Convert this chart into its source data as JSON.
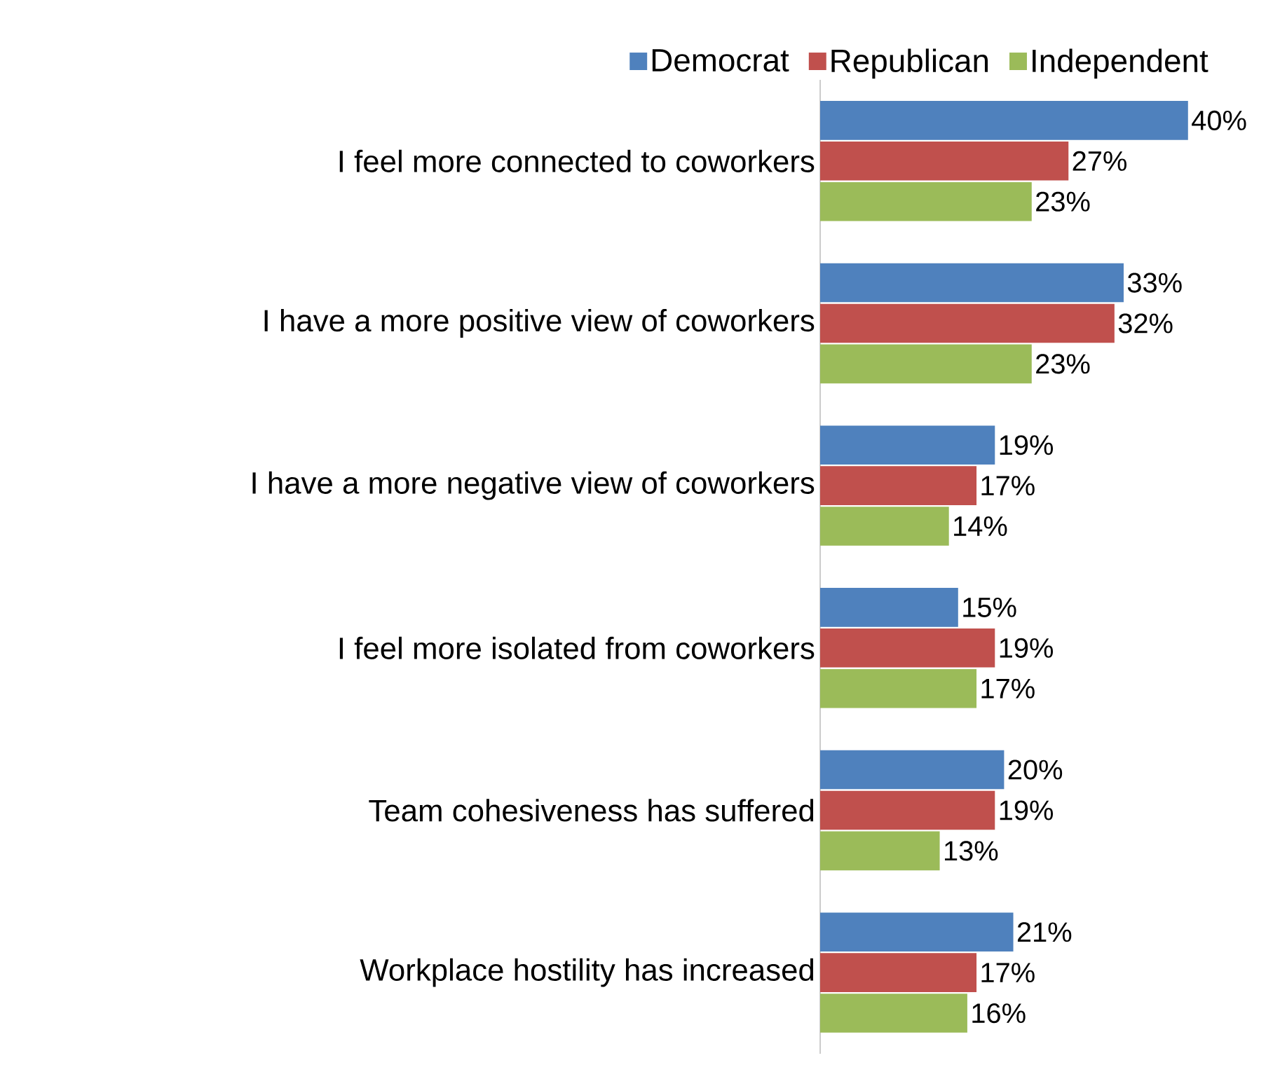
{
  "chart_data": {
    "type": "bar",
    "orientation": "horizontal",
    "legend": "top",
    "categories": [
      "I feel more connected to coworkers",
      "I have a more positive view of coworkers",
      "I have a more negative view of coworkers",
      "I feel more isolated from coworkers",
      "Team cohesiveness has suffered",
      "Workplace hostility has increased"
    ],
    "series": [
      {
        "name": "Democrat",
        "color": "#4f81bd",
        "values": [
          40,
          33,
          19,
          15,
          20,
          21
        ],
        "value_labels": [
          "40%",
          "33%",
          "19%",
          "15%",
          "20%",
          "21%"
        ]
      },
      {
        "name": "Republican",
        "color": "#c0504d",
        "values": [
          27,
          32,
          17,
          19,
          19,
          17
        ],
        "value_labels": [
          "27%",
          "32%",
          "17%",
          "19%",
          "19%",
          "17%"
        ]
      },
      {
        "name": "Independent",
        "color": "#9bbb59",
        "values": [
          23,
          23,
          14,
          17,
          13,
          16
        ],
        "value_labels": [
          "23%",
          "23%",
          "14%",
          "17%",
          "13%",
          "16%"
        ]
      }
    ]
  }
}
